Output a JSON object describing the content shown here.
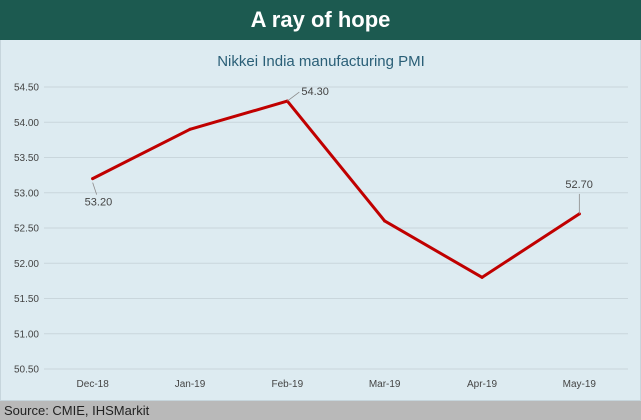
{
  "banner": {
    "title": "A ray of hope"
  },
  "footer": {
    "source": "Source: CMIE, IHSMarkit"
  },
  "colors": {
    "banner": "#1c5a50",
    "panel": "#ddebf1",
    "line": "#c00000",
    "title": "#2a5f77"
  },
  "chart_data": {
    "type": "line",
    "title": "Nikkei India manufacturing PMI",
    "xlabel": "",
    "ylabel": "",
    "categories": [
      "Dec-18",
      "Jan-19",
      "Feb-19",
      "Mar-19",
      "Apr-19",
      "May-19"
    ],
    "series": [
      {
        "values": [
          53.2,
          53.9,
          54.3,
          52.6,
          51.8,
          52.7
        ]
      }
    ],
    "data_labels": [
      {
        "index": 0,
        "text": "53.20"
      },
      {
        "index": 2,
        "text": "54.30"
      },
      {
        "index": 5,
        "text": "52.70"
      }
    ],
    "ylim": [
      50.5,
      54.5
    ],
    "yticks": [
      "50.50",
      "51.00",
      "51.50",
      "52.00",
      "52.50",
      "53.00",
      "53.50",
      "54.00",
      "54.50"
    ],
    "grid": true,
    "legend": "none"
  }
}
